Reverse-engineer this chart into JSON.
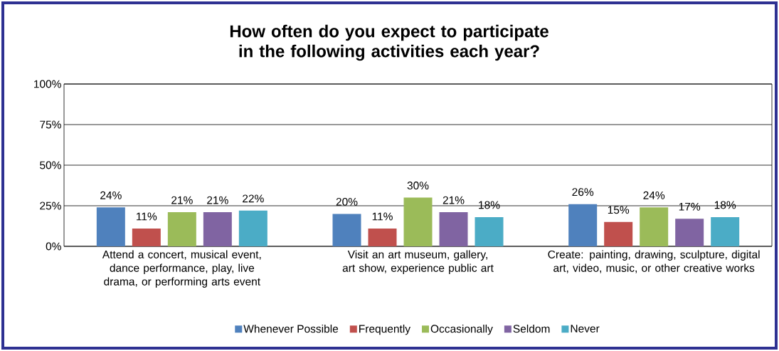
{
  "chart_data": {
    "type": "bar",
    "title": "How often do you expect to participate in the following activities each year?",
    "categories": [
      "Attend a concert, musical event, dance performance, play, live drama, or performing arts event",
      "Visit an art museum, gallery, art show, experience public art",
      "Create: painting, drawing, sculpture, digital art, video, music, or other creative works"
    ],
    "series": [
      {
        "name": "Whenever Possible",
        "color": "#4f81bd",
        "values": [
          24,
          20,
          26
        ],
        "value_labels": [
          "24%",
          "20%",
          "26%"
        ]
      },
      {
        "name": "Frequently",
        "color": "#c0504d",
        "values": [
          11,
          11,
          15
        ],
        "value_labels": [
          "11%",
          "11%",
          "15%"
        ]
      },
      {
        "name": "Occasionally",
        "color": "#9bbb59",
        "values": [
          21,
          30,
          24
        ],
        "value_labels": [
          "21%",
          "30%",
          "24%"
        ]
      },
      {
        "name": "Seldom",
        "color": "#8064a2",
        "values": [
          21,
          21,
          17
        ],
        "value_labels": [
          "21%",
          "21%",
          "17%"
        ]
      },
      {
        "name": "Never",
        "color": "#4bacc6",
        "values": [
          22,
          18,
          18
        ],
        "value_labels": [
          "22%",
          "18%",
          "18%"
        ]
      }
    ],
    "ylim": [
      0,
      100
    ],
    "yticks": [
      {
        "value": 0,
        "label": "0%"
      },
      {
        "value": 25,
        "label": "25%"
      },
      {
        "value": 50,
        "label": "50%"
      },
      {
        "value": 75,
        "label": "75%"
      },
      {
        "value": 100,
        "label": "100%"
      }
    ],
    "grid": "y",
    "legend": "bottom"
  }
}
